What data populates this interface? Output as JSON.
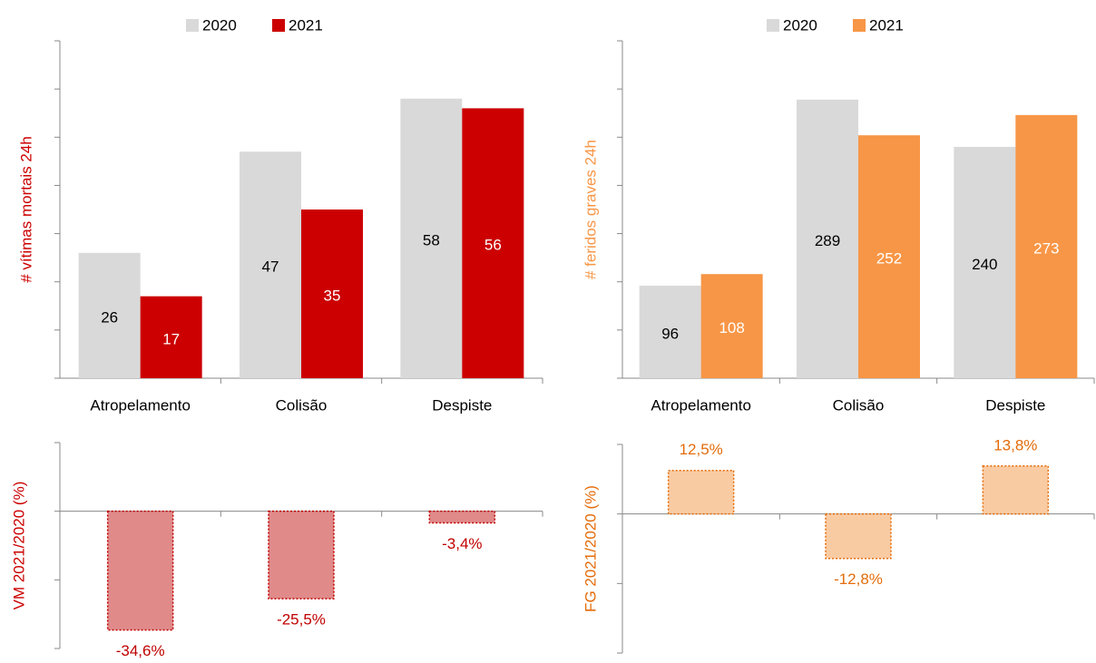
{
  "chart_data": [
    {
      "type": "bar",
      "ylabel": "# vítimas mortais 24h",
      "ylabel_color": "#cc0000",
      "categories": [
        "Atropelamento",
        "Colisão",
        "Despiste"
      ],
      "series": [
        {
          "name": "2020",
          "color": "#d9d9d9",
          "values": [
            26,
            47,
            58
          ]
        },
        {
          "name": "2021",
          "color": "#cc0000",
          "values": [
            17,
            35,
            56
          ]
        }
      ],
      "ylim": [
        0,
        70
      ],
      "yticks": [
        0,
        10,
        20,
        30,
        40,
        50,
        60,
        70
      ]
    },
    {
      "type": "bar",
      "ylabel": "# feridos graves 24h",
      "ylabel_color": "#f79646",
      "categories": [
        "Atropelamento",
        "Colisão",
        "Despiste"
      ],
      "series": [
        {
          "name": "2020",
          "color": "#d9d9d9",
          "values": [
            96,
            289,
            240
          ]
        },
        {
          "name": "2021",
          "color": "#f79646",
          "values": [
            108,
            252,
            273
          ]
        }
      ],
      "ylim": [
        0,
        350
      ],
      "yticks": [
        0,
        50,
        100,
        150,
        200,
        250,
        300,
        350
      ]
    },
    {
      "type": "bar",
      "ylabel": "VM 2021/2020 (%)",
      "ylabel_color": "#cc0000",
      "values": [
        -34.6,
        -25.5,
        -3.4
      ],
      "value_labels": [
        "-34,6%",
        "-25,5%",
        "-3,4%"
      ],
      "color": "#e08a8a",
      "edgecolor": "#c00000",
      "ylim": [
        -40,
        20
      ],
      "yticks": [
        -40,
        -20,
        0,
        20
      ]
    },
    {
      "type": "bar",
      "ylabel": "FG 2021/2020 (%)",
      "ylabel_color": "#e46c0a",
      "values": [
        12.5,
        -12.8,
        13.8
      ],
      "value_labels": [
        "12,5%",
        "-12,8%",
        "13,8%"
      ],
      "color": "#f9cba3",
      "edgecolor": "#e46c0a",
      "ylim": [
        -40,
        20
      ],
      "yticks": [
        -40,
        -20,
        0,
        20
      ]
    }
  ]
}
